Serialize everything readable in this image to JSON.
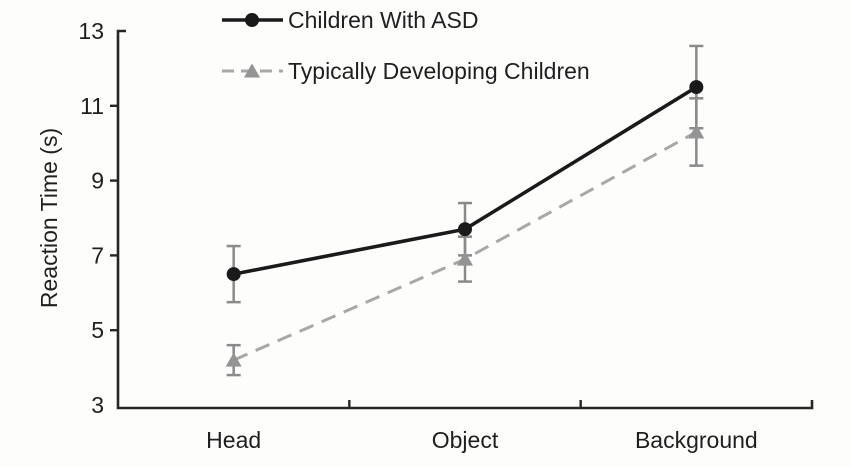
{
  "figure": {
    "background": "#fdfdfc",
    "axis_color": "#262626",
    "text_color": "#1f1f1f",
    "error_bar_color": "#8a8a8a"
  },
  "chart_data": {
    "type": "line",
    "title": "",
    "xlabel": "",
    "ylabel": "Reaction Time (s)",
    "categories": [
      "Head",
      "Object",
      "Background"
    ],
    "series": [
      {
        "name": "Children With ASD",
        "marker": "circle",
        "line_style": "solid",
        "color": "#1a1a1a",
        "marker_color": "#1a1a1a",
        "values": [
          6.5,
          7.7,
          11.5
        ],
        "errors": [
          0.75,
          0.7,
          1.1
        ]
      },
      {
        "name": "Typically Developing Children",
        "marker": "triangle",
        "line_style": "dashed",
        "color": "#a8a8a8",
        "marker_color": "#949494",
        "values": [
          4.2,
          6.9,
          10.3
        ],
        "errors": [
          0.4,
          0.6,
          0.9
        ]
      }
    ],
    "ylim": [
      3,
      13
    ],
    "yticks": [
      13,
      11,
      9,
      7,
      5,
      3
    ],
    "grid": false,
    "legend_position": "top-left"
  }
}
